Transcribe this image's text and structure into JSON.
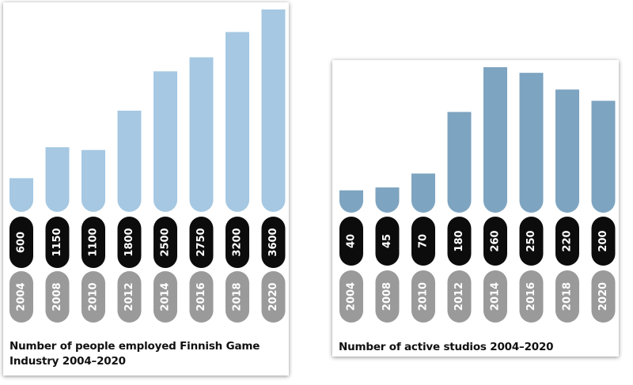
{
  "chart_data": [
    {
      "type": "bar",
      "title": "Number of people employed Finnish Game Industry 2004–2020",
      "categories": [
        "2004",
        "2008",
        "2010",
        "2012",
        "2014",
        "2016",
        "2018",
        "2020"
      ],
      "values": [
        600,
        1150,
        1100,
        1800,
        2500,
        2750,
        3200,
        3600
      ],
      "value_labels": [
        "600",
        "1150",
        "1100",
        "1800",
        "2500",
        "2750",
        "3200",
        "3600"
      ],
      "ylim": [
        0,
        3600
      ],
      "grid": false,
      "colors": {
        "bar": "#a6c8e2",
        "value_pill": "#0c0c0c",
        "year_pill": "#9a9a9a"
      }
    },
    {
      "type": "bar",
      "title": "Number of active studios 2004–2020",
      "categories": [
        "2004",
        "2008",
        "2010",
        "2012",
        "2014",
        "2016",
        "2018",
        "2020"
      ],
      "values": [
        40,
        45,
        70,
        180,
        260,
        250,
        220,
        200
      ],
      "value_labels": [
        "40",
        "45",
        "70",
        "180",
        "260",
        "250",
        "220",
        "200"
      ],
      "ylim": [
        0,
        260
      ],
      "grid": false,
      "colors": {
        "bar": "#7da4c1",
        "value_pill": "#0c0c0c",
        "year_pill": "#9a9a9a"
      }
    }
  ]
}
